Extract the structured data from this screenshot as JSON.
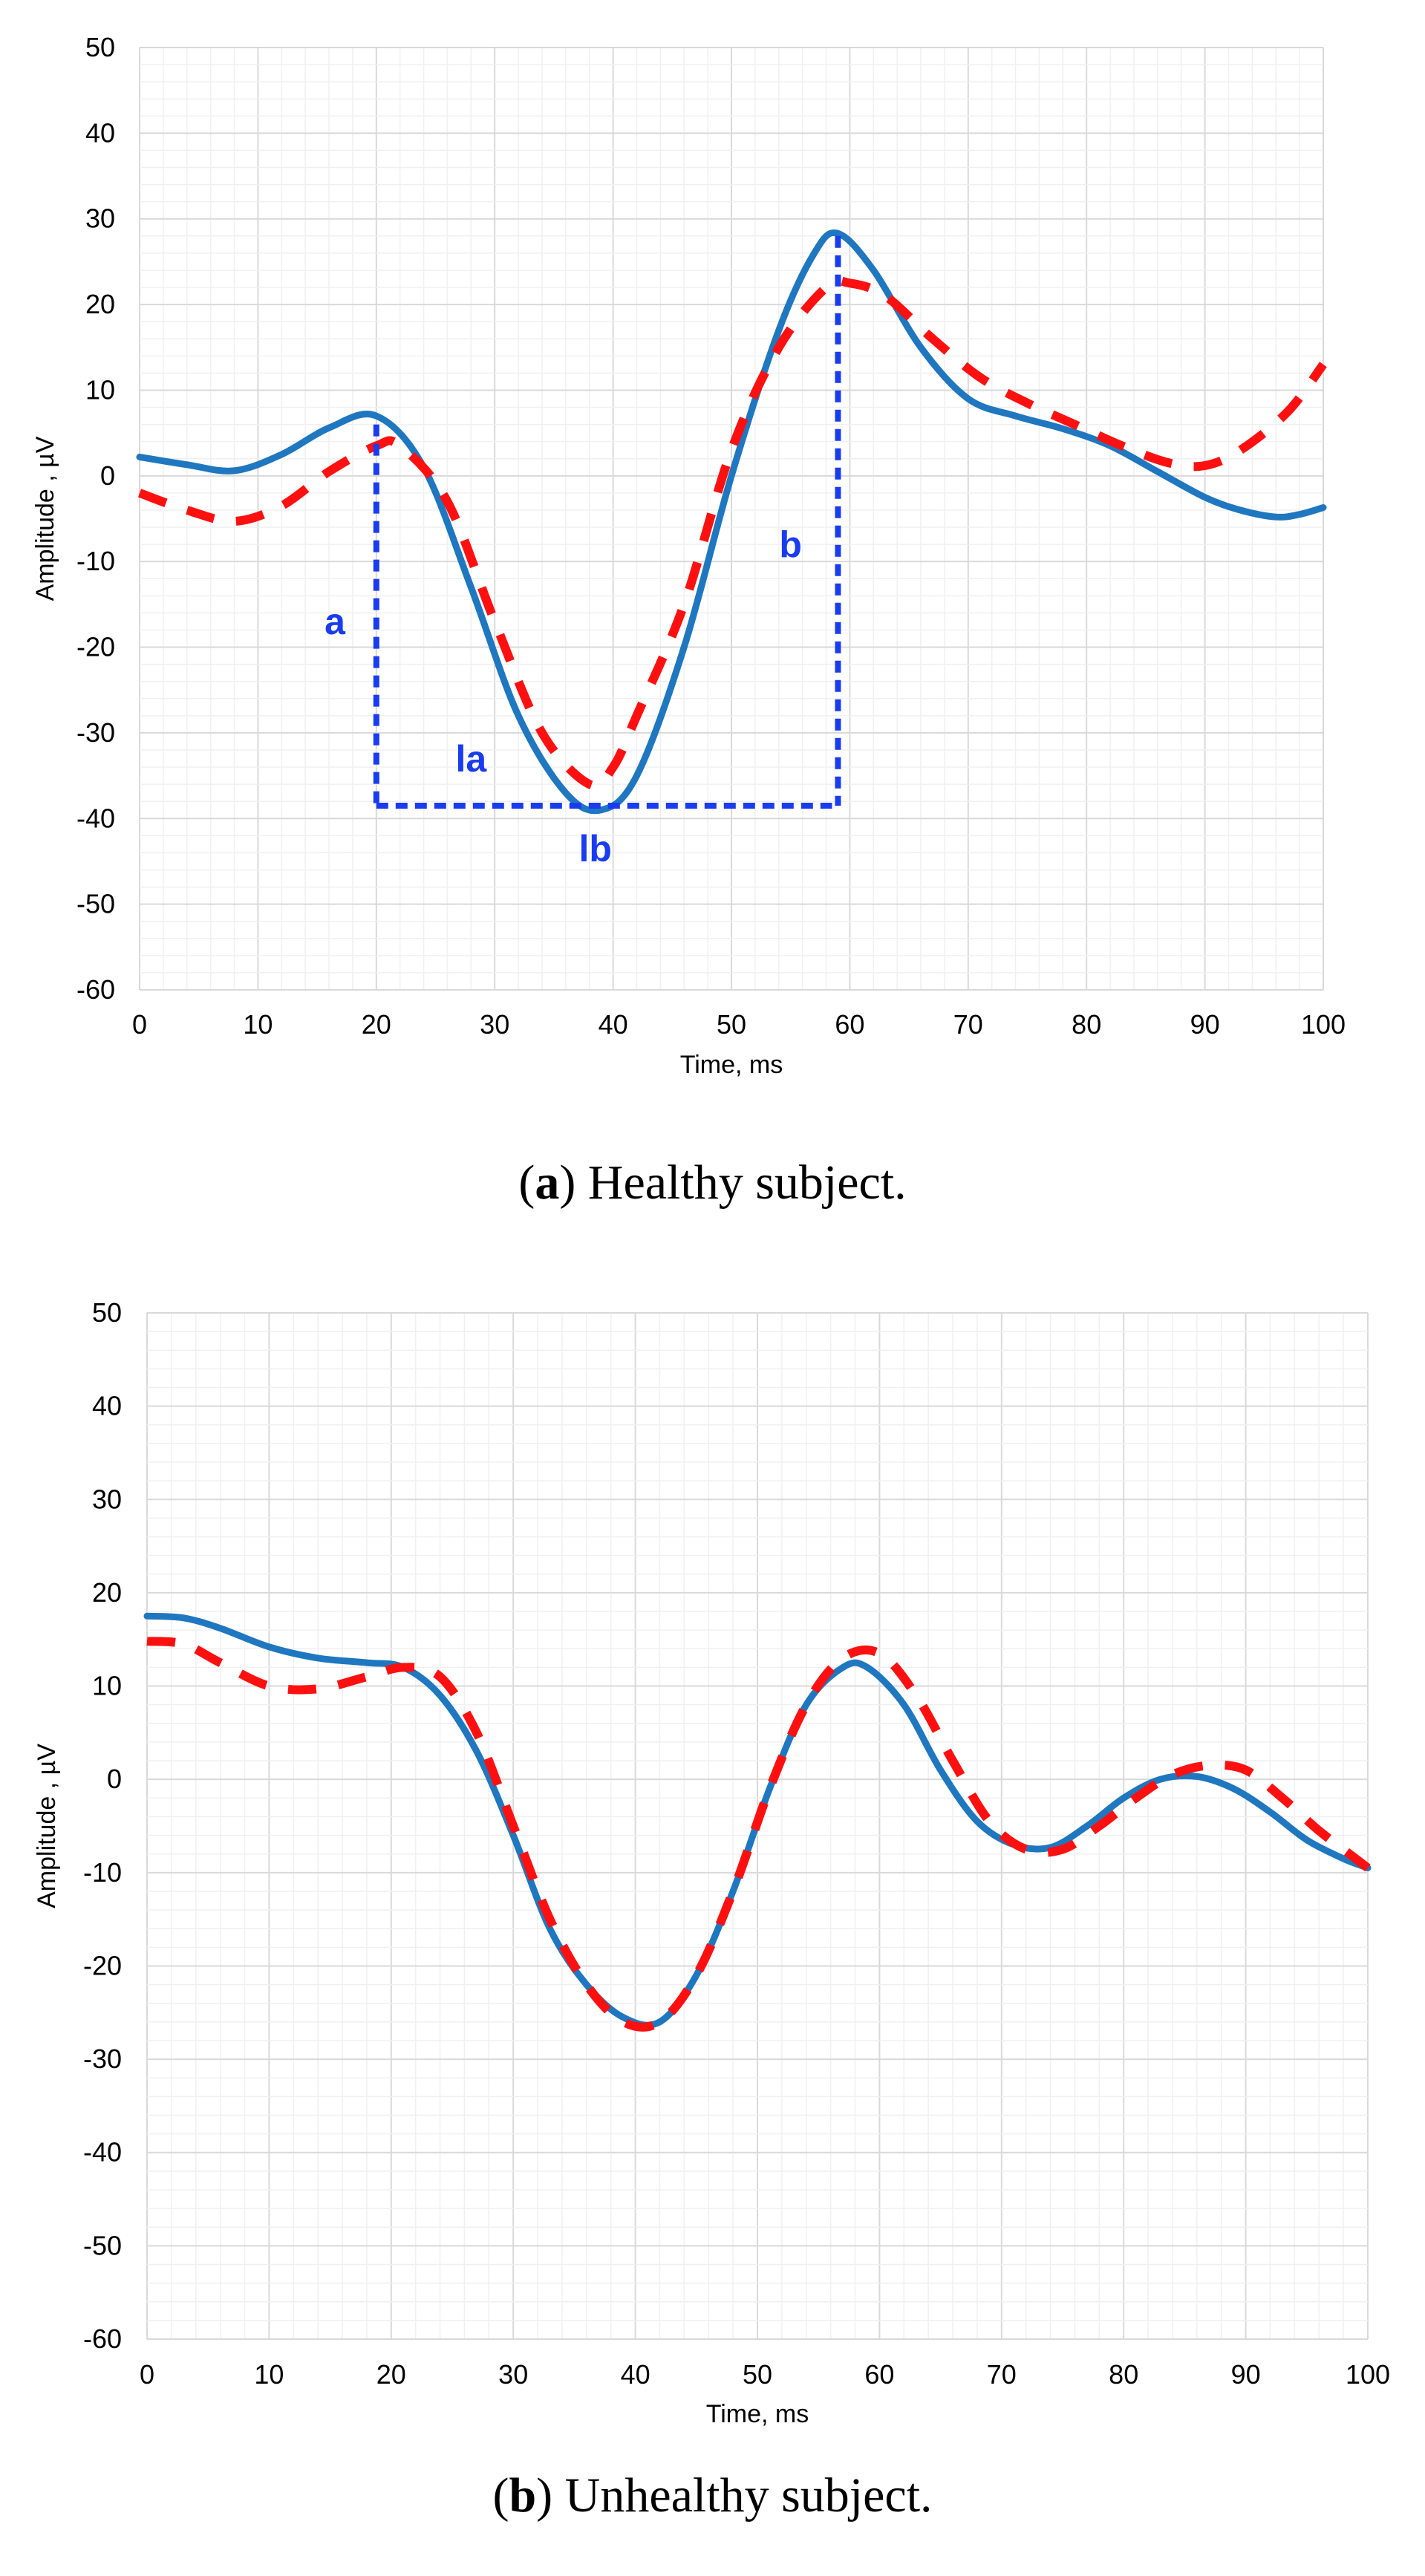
{
  "chart_data": [
    {
      "type": "line",
      "caption": {
        "letter": "a",
        "text": "Healthy subject."
      },
      "xlabel": "Time, ms",
      "ylabel": "Amplitude , µV",
      "xlim": [
        0,
        100
      ],
      "ylim": [
        -60,
        50
      ],
      "xticks": [
        0,
        10,
        20,
        30,
        40,
        50,
        60,
        70,
        80,
        90,
        100
      ],
      "yticks": [
        -60,
        -50,
        -40,
        -30,
        -20,
        -10,
        0,
        10,
        20,
        30,
        40,
        50
      ],
      "grid": true,
      "series": [
        {
          "name": "solid",
          "style": "solid",
          "color": "#1f77c0",
          "x": [
            0,
            4,
            8,
            12,
            16,
            20,
            24,
            28,
            32,
            36,
            39,
            42,
            46,
            50,
            54,
            57,
            59,
            62,
            66,
            70,
            74,
            78,
            82,
            86,
            90,
            93,
            96,
            98,
            100
          ],
          "y": [
            2.2,
            1.3,
            0.6,
            2.5,
            5.6,
            7.0,
            1.0,
            -13,
            -28,
            -37,
            -39,
            -35,
            -20,
            0,
            17,
            26,
            28.3,
            24,
            15,
            9,
            7,
            5.5,
            3.5,
            0.5,
            -2.5,
            -4,
            -4.8,
            -4.5,
            -3.7
          ]
        },
        {
          "name": "dashed",
          "style": "dashed",
          "color": "#ff1010",
          "x": [
            0,
            4,
            8,
            12,
            16,
            20,
            22,
            26,
            30,
            34,
            38,
            40,
            42,
            46,
            50,
            54,
            58,
            60,
            63,
            67,
            71,
            75,
            79,
            83,
            87,
            90,
            93,
            97,
            100
          ],
          "y": [
            -2,
            -4,
            -5.3,
            -3.5,
            0.5,
            3.5,
            3.5,
            -3,
            -17,
            -30,
            -36,
            -34,
            -28,
            -15,
            3,
            15,
            22,
            22.5,
            21,
            16,
            11.5,
            8.5,
            6,
            3.5,
            1.5,
            1.2,
            3,
            7.5,
            13
          ]
        }
      ],
      "annotations": [
        {
          "label": "a",
          "kind": "vertical",
          "x": 20,
          "y_from": 6,
          "y_to": -38.5,
          "label_x": 16.5,
          "label_y": -18.5
        },
        {
          "label": "la",
          "kind": "horizontal",
          "x_from": 20,
          "x_to": 58.5,
          "y": -38.5,
          "label_x": 28,
          "label_y": -34.5
        },
        {
          "label": "b",
          "kind": "vertical",
          "x": 59,
          "y_from": 28,
          "y_to": -38.5,
          "label_x": 55,
          "label_y": -9.5
        },
        {
          "label": "lb",
          "kind": "text",
          "label_x": 38.5,
          "label_y": -45
        }
      ]
    },
    {
      "type": "line",
      "caption": {
        "letter": "b",
        "text": "Unhealthy subject."
      },
      "xlabel": "Time, ms",
      "ylabel": "Amplitude , µV",
      "xlim": [
        0,
        100
      ],
      "ylim": [
        -60,
        50
      ],
      "xticks": [
        0,
        10,
        20,
        30,
        40,
        50,
        60,
        70,
        80,
        90,
        100
      ],
      "yticks": [
        -60,
        -50,
        -40,
        -30,
        -20,
        -10,
        0,
        10,
        20,
        30,
        40,
        50
      ],
      "grid": true,
      "series": [
        {
          "name": "solid",
          "style": "solid",
          "color": "#1f77c0",
          "x": [
            0,
            3,
            6,
            10,
            14,
            18,
            21,
            24,
            27,
            30,
            33,
            36,
            39,
            42,
            45,
            48,
            51,
            54,
            57,
            59,
            62,
            65,
            68,
            71,
            74,
            77,
            80,
            83,
            86,
            89,
            92,
            95,
            98,
            100
          ],
          "y": [
            17.5,
            17.3,
            16.2,
            14.2,
            13,
            12.5,
            12,
            9,
            3,
            -6,
            -16,
            -22,
            -25.5,
            -26,
            -21,
            -12,
            -1,
            8,
            12,
            12,
            8,
            1,
            -4.5,
            -7,
            -7.3,
            -5,
            -2,
            0,
            0.3,
            -1,
            -3.5,
            -6.5,
            -8.5,
            -9.5
          ]
        },
        {
          "name": "dashed",
          "style": "dashed",
          "color": "#ff1010",
          "x": [
            0,
            3,
            6,
            10,
            14,
            18,
            21,
            24,
            27,
            30,
            33,
            36,
            39,
            42,
            45,
            48,
            51,
            54,
            57,
            60,
            63,
            66,
            69,
            72,
            75,
            78,
            81,
            84,
            87,
            90,
            93,
            96,
            99,
            100
          ],
          "y": [
            14.8,
            14.5,
            12.5,
            10,
            9.7,
            11,
            12,
            11,
            5,
            -5,
            -15,
            -22,
            -26,
            -26,
            -21,
            -12,
            -1,
            8,
            13,
            13.5,
            9,
            2,
            -4.5,
            -7.5,
            -7.5,
            -5,
            -2,
            0.5,
            1.5,
            1,
            -2,
            -5.5,
            -8.5,
            -9.5
          ]
        }
      ],
      "annotations": []
    }
  ]
}
